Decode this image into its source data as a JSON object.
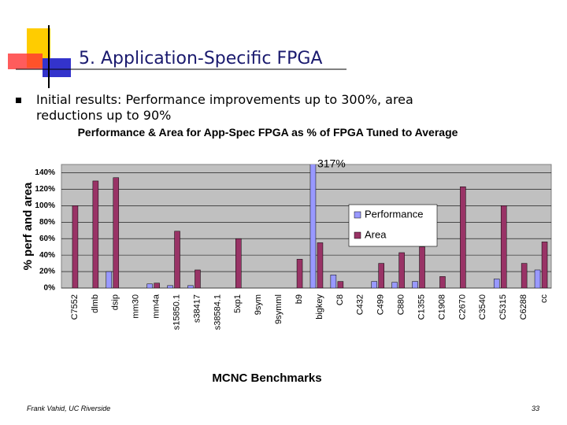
{
  "slide": {
    "title": "5. Application-Specific FPGA",
    "bullet": "Initial results: Performance improvements up to 300%, area reductions up to 90%",
    "footer": "Frank Vahid, UC Riverside",
    "page_number": "33"
  },
  "chart_data": {
    "type": "bar",
    "title": "Performance & Area  for App-Spec FPGA as % of FPGA Tuned to Average",
    "x_label": "MCNC Benchmarks",
    "y_label": "% perf and area",
    "categories": [
      "C7552",
      "dlmb",
      "dsip",
      "mm30",
      "mm4a",
      "s15850.1",
      "s38417",
      "s38584.1",
      "5xp1",
      "9sym",
      "9symml",
      "b9",
      "bigkey",
      "C8",
      "C432",
      "C499",
      "C880",
      "C1355",
      "C1908",
      "C2670",
      "C3540",
      "C5315",
      "C6288",
      "cc"
    ],
    "series": [
      {
        "name": "Performance",
        "color": "#9999ff",
        "values": [
          0,
          0,
          20,
          0,
          5,
          3,
          3,
          0,
          0,
          0,
          0,
          0,
          317,
          16,
          0,
          8,
          7,
          8,
          0,
          0,
          0,
          11,
          0,
          22
        ],
        "value_labels": [
          null,
          null,
          null,
          null,
          null,
          null,
          null,
          null,
          null,
          null,
          null,
          null,
          "317%",
          null,
          null,
          null,
          null,
          null,
          null,
          null,
          null,
          null,
          null,
          null
        ]
      },
      {
        "name": "Area",
        "color": "#993366",
        "values": [
          100,
          130,
          134,
          0,
          6,
          69,
          22,
          0,
          60,
          0,
          0,
          35,
          55,
          8,
          0,
          30,
          43,
          50,
          14,
          123,
          0,
          100,
          30,
          56
        ]
      }
    ],
    "ylim": [
      0,
      150
    ],
    "yticks": [
      {
        "value": 0,
        "label": "0%"
      },
      {
        "value": 20,
        "label": "20%"
      },
      {
        "value": 40,
        "label": "40%"
      },
      {
        "value": 60,
        "label": "60%"
      },
      {
        "value": 80,
        "label": "80%"
      },
      {
        "value": 100,
        "label": "100%"
      },
      {
        "value": 120,
        "label": "120%"
      },
      {
        "value": 140,
        "label": "140%"
      }
    ],
    "grid": true,
    "legend": "upper right",
    "plot_background": "#c0c0c0"
  }
}
